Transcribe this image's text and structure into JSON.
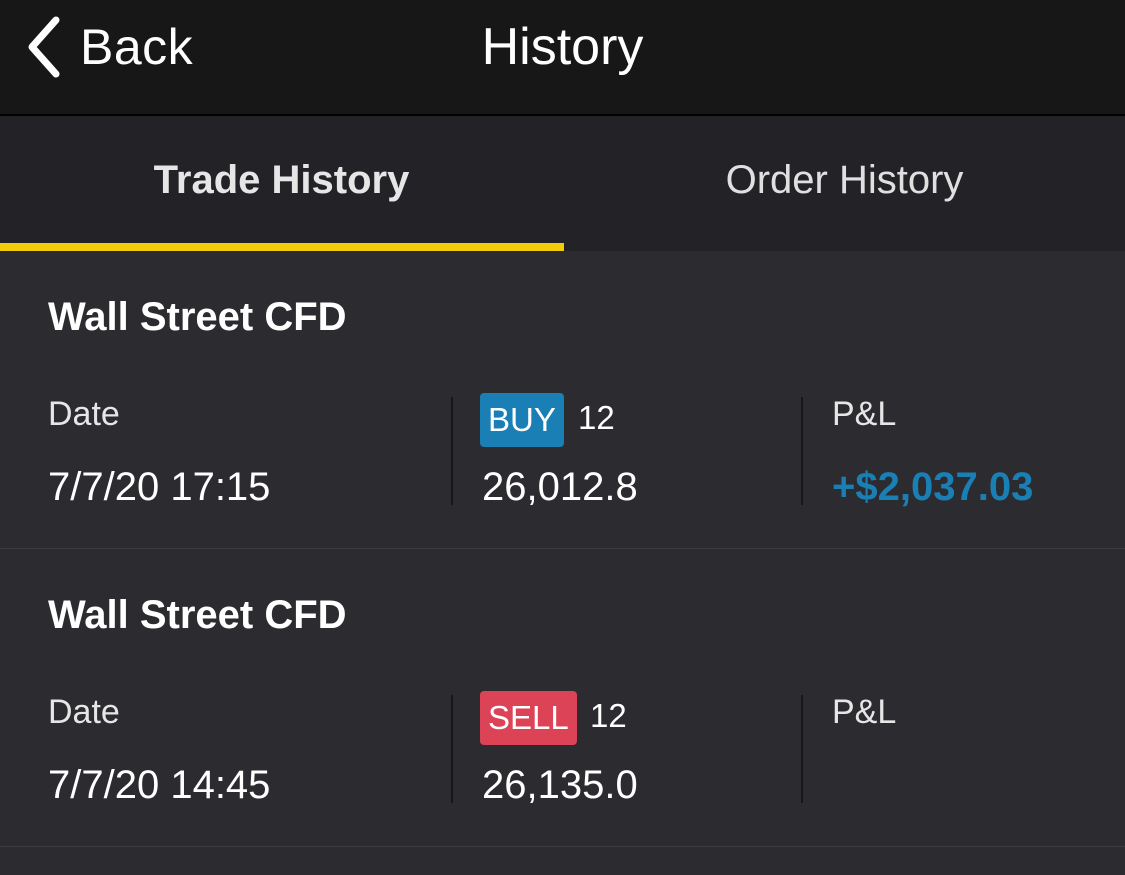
{
  "header": {
    "back_label": "Back",
    "title": "History"
  },
  "tabs": [
    {
      "label": "Trade History",
      "active": true
    },
    {
      "label": "Order History",
      "active": false
    }
  ],
  "colors": {
    "accent": "#f5cc0c",
    "buy": "#1a7fb5",
    "sell": "#dc4356",
    "profit": "#1a7fb5"
  },
  "trades": [
    {
      "instrument": "Wall Street CFD",
      "date_label": "Date",
      "date": "7/7/20 17:15",
      "side": "BUY",
      "quantity": "12",
      "price": "26,012.8",
      "pl_label": "P&L",
      "pl": "+$2,037.03"
    },
    {
      "instrument": "Wall Street CFD",
      "date_label": "Date",
      "date": "7/7/20 14:45",
      "side": "SELL",
      "quantity": "12",
      "price": "26,135.0",
      "pl_label": "P&L",
      "pl": ""
    }
  ]
}
